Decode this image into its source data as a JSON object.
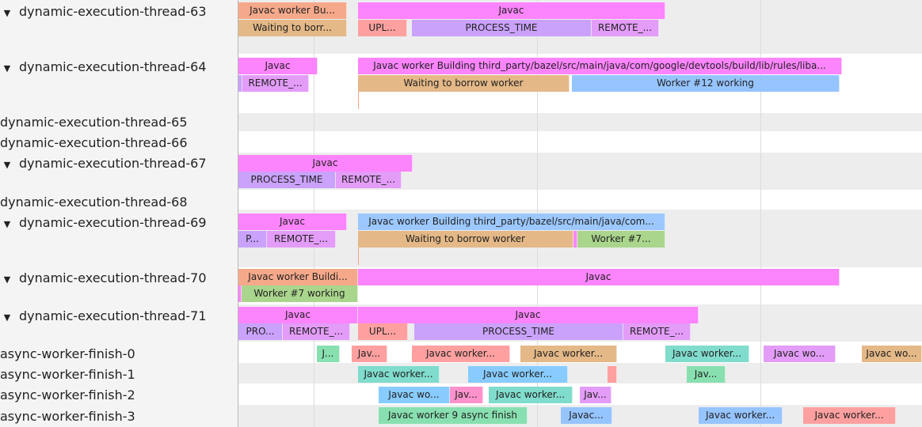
{
  "colors": {
    "magenta": "#fc84fc",
    "salmon": "#f6a98a",
    "tan": "#e4b887",
    "pink": "#ffa0a0",
    "lilac": "#caa2fc",
    "violet": "#e39cf8",
    "blue": "#96c4ff",
    "green": "#aad58c",
    "mint": "#88e0b0",
    "teal": "#80dccc",
    "sky": "#88ccff",
    "rose": "#ff92cc"
  },
  "tracks": [
    {
      "name": "dynamic-execution-thread-63",
      "expanded": true,
      "slices": [
        {
          "label": "Javac worker Bu...",
          "color": "#f6a98a"
        },
        {
          "label": "Javac",
          "color": "#fc84fc"
        },
        {
          "label": "Waiting to borr...",
          "color": "#e4b887"
        },
        {
          "label": "UPL...",
          "color": "#ffa0a0"
        },
        {
          "label": "PROCESS_TIME",
          "color": "#caa2fc"
        },
        {
          "label": "REMOTE_...",
          "color": "#e39cf8"
        }
      ]
    },
    {
      "name": "dynamic-execution-thread-64",
      "expanded": true,
      "slices": [
        {
          "label": "Javac",
          "color": "#fc84fc"
        },
        {
          "label": "Javac worker Building third_party/bazel/src/main/java/com/google/devtools/build/lib/rules/liba...",
          "color": "#fc84fc"
        },
        {
          "label": "",
          "color": "#caa2fc"
        },
        {
          "label": "REMOTE_...",
          "color": "#e39cf8"
        },
        {
          "label": "Waiting to borrow worker",
          "color": "#e4b887"
        },
        {
          "label": "Worker #12 working",
          "color": "#96c4ff"
        }
      ]
    },
    {
      "name": "dynamic-execution-thread-65",
      "expanded": false,
      "slices": []
    },
    {
      "name": "dynamic-execution-thread-66",
      "expanded": false,
      "slices": []
    },
    {
      "name": "dynamic-execution-thread-67",
      "expanded": true,
      "slices": [
        {
          "label": "Javac",
          "color": "#fc84fc"
        },
        {
          "label": "PROCESS_TIME",
          "color": "#caa2fc"
        },
        {
          "label": "REMOTE_...",
          "color": "#e39cf8"
        }
      ]
    },
    {
      "name": "dynamic-execution-thread-68",
      "expanded": false,
      "slices": []
    },
    {
      "name": "dynamic-execution-thread-69",
      "expanded": true,
      "slices": [
        {
          "label": "Javac",
          "color": "#fc84fc"
        },
        {
          "label": "Javac worker Building third_party/bazel/src/main/java/com...",
          "color": "#9cc8ff"
        },
        {
          "label": "P...",
          "color": "#caa2fc"
        },
        {
          "label": "REMOTE_...",
          "color": "#e39cf8"
        },
        {
          "label": "Waiting to borrow worker",
          "color": "#e4b887"
        },
        {
          "label": "",
          "color": "#fc84fc"
        },
        {
          "label": "Worker #7...",
          "color": "#aad58c"
        }
      ]
    },
    {
      "name": "dynamic-execution-thread-70",
      "expanded": true,
      "slices": [
        {
          "label": "Javac worker Buildi...",
          "color": "#f6a98a"
        },
        {
          "label": "Javac",
          "color": "#fc84fc"
        },
        {
          "label": "",
          "color": "#fc84fc"
        },
        {
          "label": "Worker #7 working",
          "color": "#aad58c"
        }
      ]
    },
    {
      "name": "dynamic-execution-thread-71",
      "expanded": true,
      "slices": [
        {
          "label": "Javac",
          "color": "#fc84fc"
        },
        {
          "label": "Javac",
          "color": "#fc84fc"
        },
        {
          "label": "PRO...",
          "color": "#caa2fc"
        },
        {
          "label": "REMOTE_...",
          "color": "#e39cf8"
        },
        {
          "label": "UPL...",
          "color": "#ffa0a0"
        },
        {
          "label": "PROCESS_TIME",
          "color": "#caa2fc"
        },
        {
          "label": "REMOTE_...",
          "color": "#e39cf8"
        }
      ]
    },
    {
      "name": "async-worker-finish-0",
      "expanded": false,
      "slices": [
        {
          "label": "J...",
          "color": "#88e0b0"
        },
        {
          "label": "Jav...",
          "color": "#ffa0a0"
        },
        {
          "label": "Javac worker...",
          "color": "#ffa0a0"
        },
        {
          "label": "Javac worker...",
          "color": "#e4b887"
        },
        {
          "label": "Javac worker...",
          "color": "#80dccc"
        },
        {
          "label": "Javac wo...",
          "color": "#e39cf8"
        },
        {
          "label": "Javac wo...",
          "color": "#e4b887"
        }
      ]
    },
    {
      "name": "async-worker-finish-1",
      "expanded": false,
      "slices": [
        {
          "label": "Javac worker...",
          "color": "#80dccc"
        },
        {
          "label": "Javac worker...",
          "color": "#88ccff"
        },
        {
          "label": "",
          "color": "#ffa0a0"
        },
        {
          "label": "Jav...",
          "color": "#88e0b0"
        }
      ]
    },
    {
      "name": "async-worker-finish-2",
      "expanded": false,
      "slices": [
        {
          "label": "Javac wo...",
          "color": "#88ccff"
        },
        {
          "label": "Jav...",
          "color": "#ff92cc"
        },
        {
          "label": "Javac worker...",
          "color": "#80dccc"
        },
        {
          "label": "Jav...",
          "color": "#e39cf8"
        }
      ]
    },
    {
      "name": "async-worker-finish-3",
      "expanded": false,
      "slices": [
        {
          "label": "Javac worker 9 async finish",
          "color": "#88e0b0"
        },
        {
          "label": "Javac...",
          "color": "#96c4ff"
        },
        {
          "label": "Javac worker...",
          "color": "#96c4ff"
        },
        {
          "label": "Javac worker...",
          "color": "#ffa0a0"
        }
      ]
    }
  ],
  "expand_glyph": "▼"
}
